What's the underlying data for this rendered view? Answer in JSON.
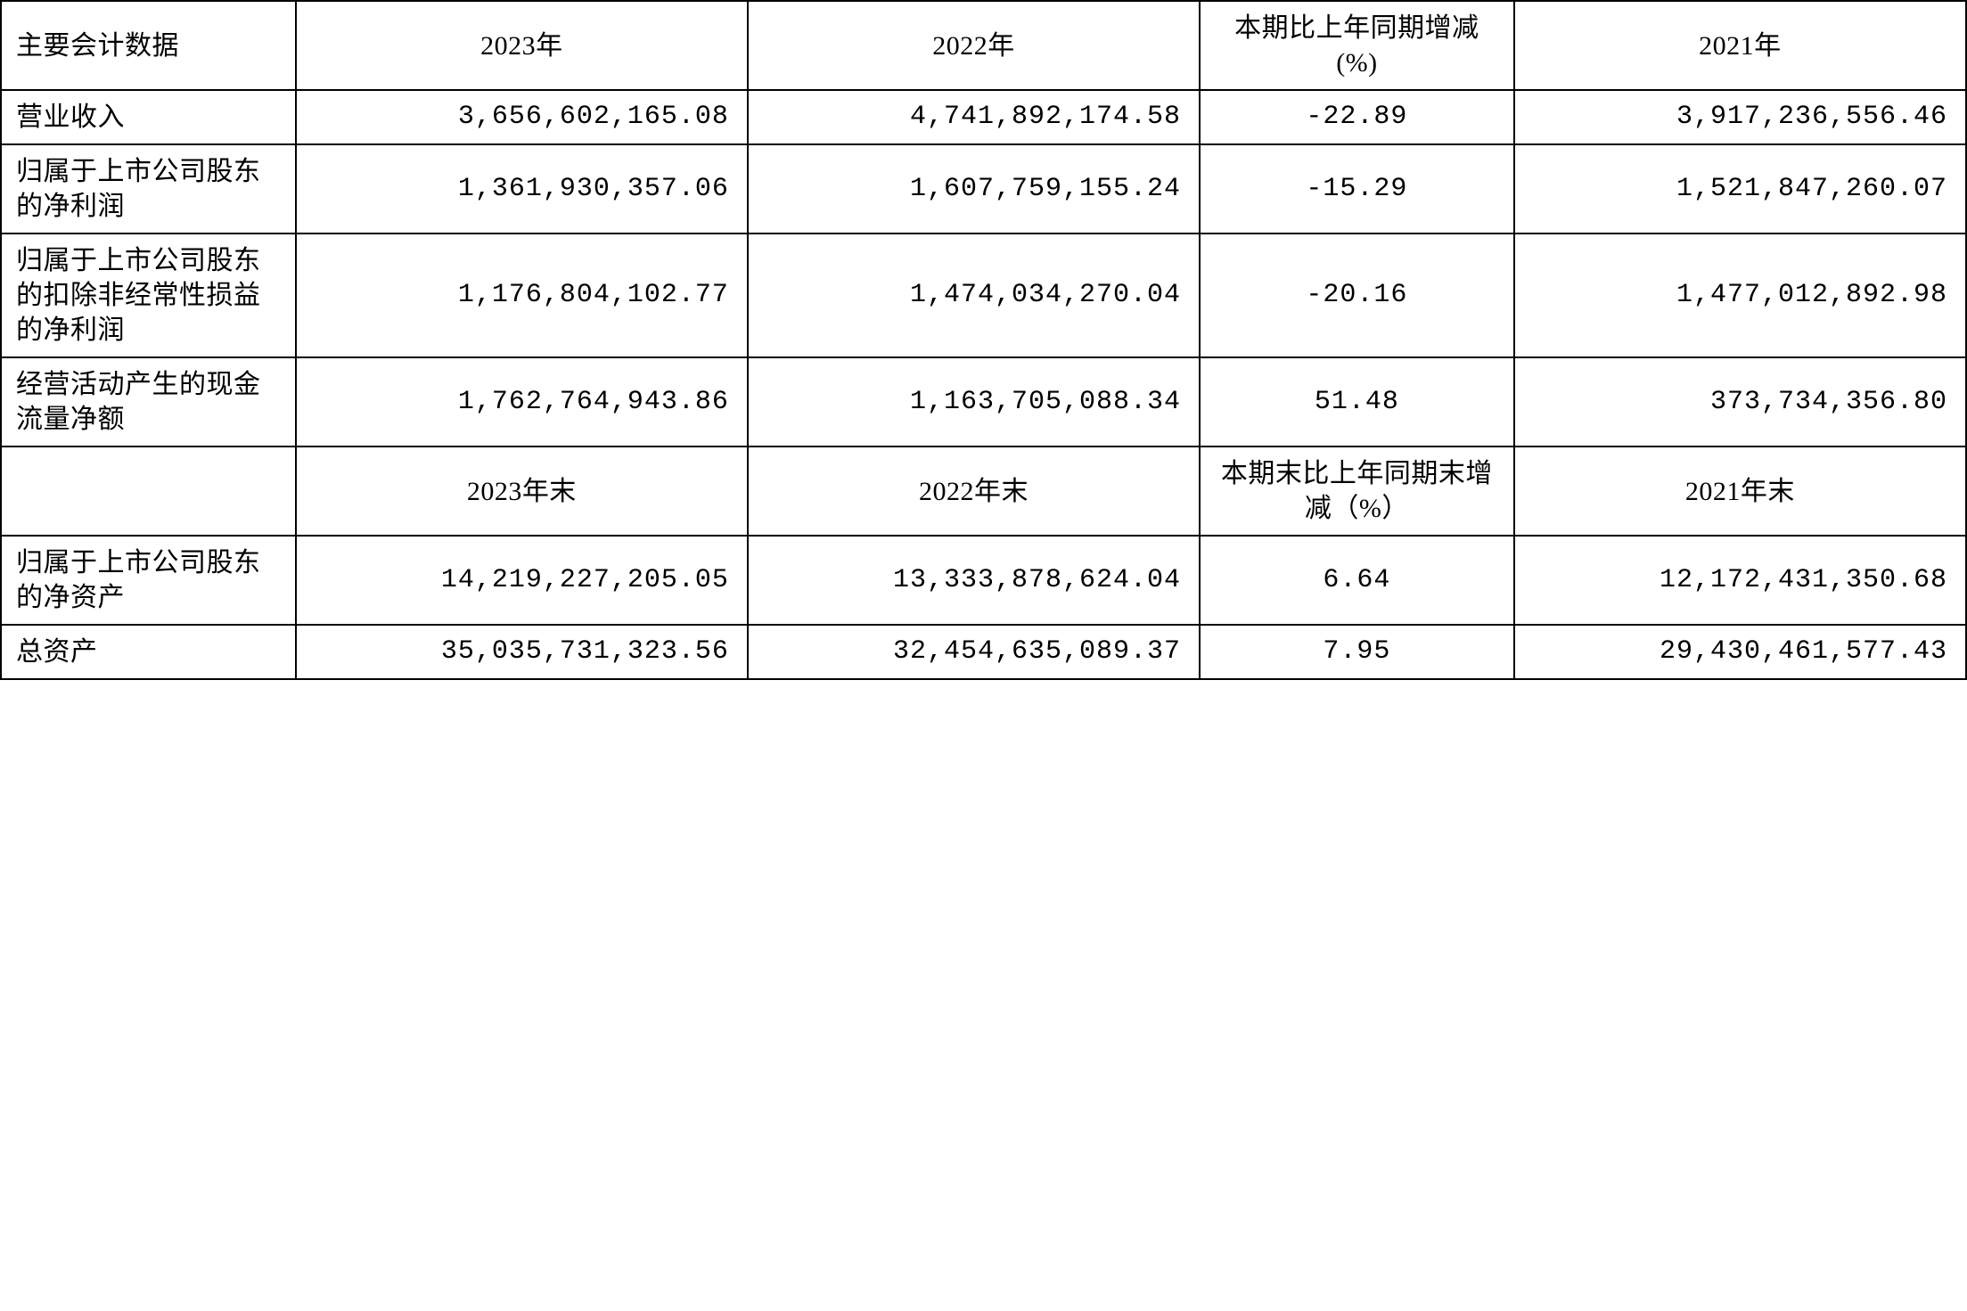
{
  "table": {
    "header1": {
      "c0": "主要会计数据",
      "c1": "2023年",
      "c2": "2022年",
      "c3": "本期比上年同期增减(%)",
      "c4": "2021年"
    },
    "rows1": [
      {
        "label": "营业收入",
        "y2023": "3,656,602,165.08",
        "y2022": "4,741,892,174.58",
        "change": "-22.89",
        "y2021": "3,917,236,556.46"
      },
      {
        "label": "归属于上市公司股东的净利润",
        "y2023": "1,361,930,357.06",
        "y2022": "1,607,759,155.24",
        "change": "-15.29",
        "y2021": "1,521,847,260.07"
      },
      {
        "label": "归属于上市公司股东的扣除非经常性损益的净利润",
        "y2023": "1,176,804,102.77",
        "y2022": "1,474,034,270.04",
        "change": "-20.16",
        "y2021": "1,477,012,892.98"
      },
      {
        "label": "经营活动产生的现金流量净额",
        "y2023": "1,762,764,943.86",
        "y2022": "1,163,705,088.34",
        "change": "51.48",
        "y2021": "373,734,356.80"
      }
    ],
    "header2": {
      "c0": "",
      "c1": "2023年末",
      "c2": "2022年末",
      "c3": "本期末比上年同期末增减（%）",
      "c4": "2021年末"
    },
    "rows2": [
      {
        "label": "归属于上市公司股东的净资产",
        "y2023": "14,219,227,205.05",
        "y2022": "13,333,878,624.04",
        "change": "6.64",
        "y2021": "12,172,431,350.68"
      },
      {
        "label": "总资产",
        "y2023": "35,035,731,323.56",
        "y2022": "32,454,635,089.37",
        "change": "7.95",
        "y2021": "29,430,461,577.43"
      }
    ]
  }
}
